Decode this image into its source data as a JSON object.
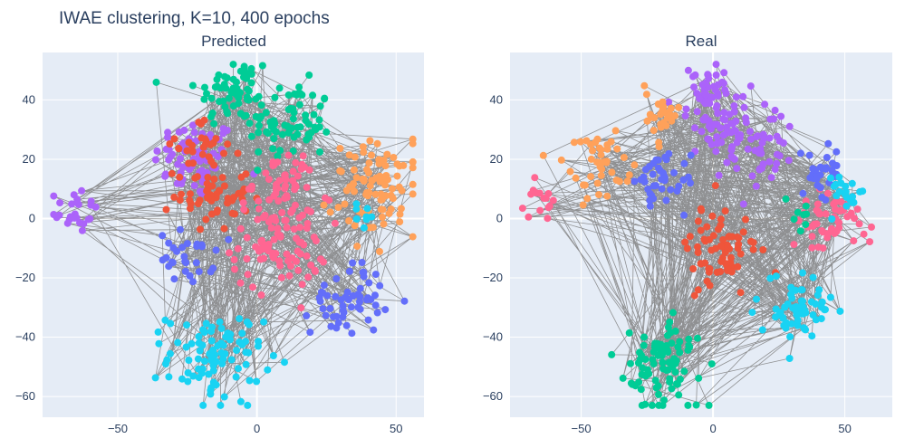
{
  "title": "IWAE clustering, K=10, 400 epochs",
  "chart_data": {
    "type": "scatter",
    "subplots": [
      {
        "title": "Predicted",
        "xlim": [
          -77,
          60
        ],
        "ylim": [
          -67,
          56
        ],
        "xticks": [
          -50,
          0,
          50
        ],
        "xtick_labels": [
          "−50",
          "0",
          "50"
        ],
        "yticks": [
          -60,
          -40,
          -20,
          0,
          20,
          40
        ],
        "ytick_labels": [
          "−60",
          "−40",
          "−20",
          "0",
          "20",
          "40"
        ],
        "grid": true,
        "edge_color": "#808080",
        "clusters": [
          {
            "color": "#ab63fa",
            "center": [
              -22,
              20
            ],
            "points": 70
          },
          {
            "color": "#ab63fa",
            "center": [
              -66,
              3
            ],
            "points": 25
          },
          {
            "color": "#00cc96",
            "center": [
              -8,
              43
            ],
            "points": 60
          },
          {
            "color": "#00cc96",
            "center": [
              12,
              32
            ],
            "points": 70
          },
          {
            "color": "#ef553b",
            "center": [
              -16,
              8
            ],
            "points": 55
          },
          {
            "color": "#ef553b",
            "center": [
              -20,
              25
            ],
            "points": 25
          },
          {
            "color": "#ff6692",
            "center": [
              8,
              -8
            ],
            "points": 90
          },
          {
            "color": "#ff6692",
            "center": [
              10,
              12
            ],
            "points": 40
          },
          {
            "color": "#ffa15a",
            "center": [
              44,
              10
            ],
            "points": 90
          },
          {
            "color": "#636efa",
            "center": [
              -25,
              -13
            ],
            "points": 30
          },
          {
            "color": "#636efa",
            "center": [
              33,
              -27
            ],
            "points": 55
          },
          {
            "color": "#19d3f3",
            "center": [
              -15,
              -47
            ],
            "points": 90
          },
          {
            "color": "#19d3f3",
            "center": [
              37,
              1
            ],
            "points": 8
          }
        ]
      },
      {
        "title": "Real",
        "xlim": [
          -77,
          68
        ],
        "ylim": [
          -67,
          56
        ],
        "xticks": [
          -50,
          0,
          50
        ],
        "xtick_labels": [
          "−50",
          "0",
          "50"
        ],
        "yticks": [
          -60,
          -40,
          -20,
          0,
          20,
          40
        ],
        "ytick_labels": [
          "−60",
          "−40",
          "−20",
          "0",
          "20",
          "40"
        ],
        "grid": true,
        "edge_color": "#808080",
        "clusters": [
          {
            "color": "#ab63fa",
            "center": [
              0,
              40
            ],
            "points": 60
          },
          {
            "color": "#ab63fa",
            "center": [
              12,
              25
            ],
            "points": 70
          },
          {
            "color": "#ffa15a",
            "center": [
              -45,
              18
            ],
            "points": 45
          },
          {
            "color": "#ffa15a",
            "center": [
              -20,
              35
            ],
            "points": 25
          },
          {
            "color": "#ff6692",
            "center": [
              -65,
              4
            ],
            "points": 15
          },
          {
            "color": "#ff6692",
            "center": [
              45,
              0
            ],
            "points": 50
          },
          {
            "color": "#636efa",
            "center": [
              -20,
              12
            ],
            "points": 40
          },
          {
            "color": "#636efa",
            "center": [
              40,
              15
            ],
            "points": 30
          },
          {
            "color": "#ef553b",
            "center": [
              2,
              -10
            ],
            "points": 70
          },
          {
            "color": "#19d3f3",
            "center": [
              32,
              -30
            ],
            "points": 60
          },
          {
            "color": "#19d3f3",
            "center": [
              50,
              10
            ],
            "points": 20
          },
          {
            "color": "#00cc96",
            "center": [
              -20,
              -50
            ],
            "points": 90
          },
          {
            "color": "#00cc96",
            "center": [
              30,
              0
            ],
            "points": 8
          }
        ]
      }
    ]
  }
}
